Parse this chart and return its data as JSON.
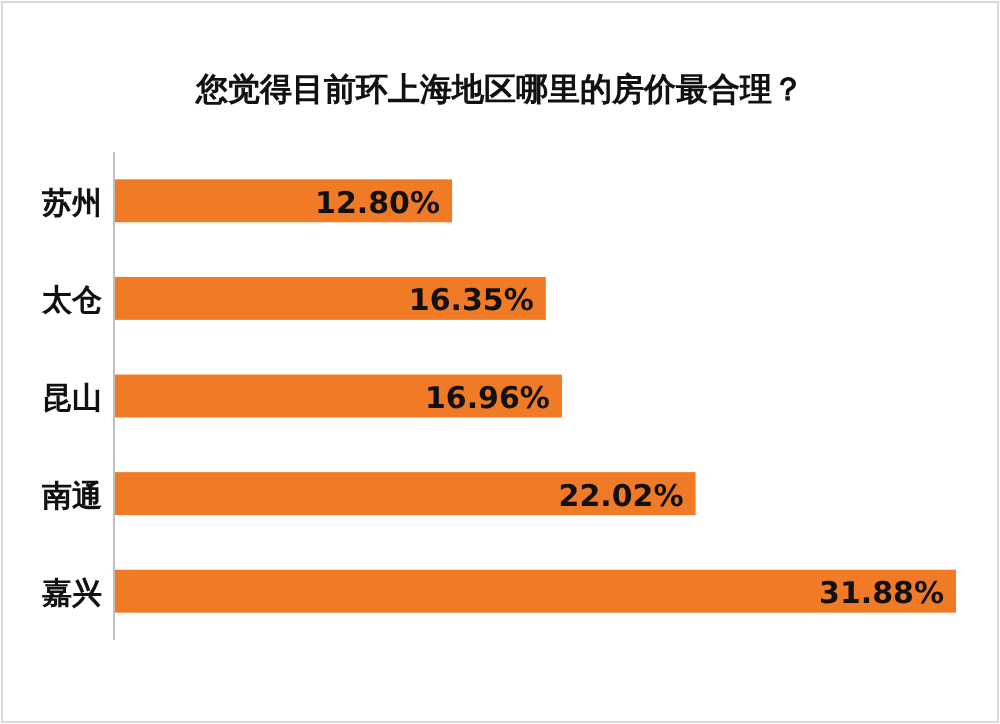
{
  "chart_data": {
    "type": "bar",
    "orientation": "horizontal",
    "title": "您觉得目前环上海地区哪里的房价最合理？",
    "categories": [
      "苏州",
      "太仓",
      "昆山",
      "南通",
      "嘉兴"
    ],
    "values": [
      12.8,
      16.35,
      16.96,
      22.02,
      31.88
    ],
    "value_labels": [
      "12.80%",
      "16.35%",
      "16.96%",
      "22.02%",
      "31.88%"
    ],
    "color": "#f07a25"
  }
}
